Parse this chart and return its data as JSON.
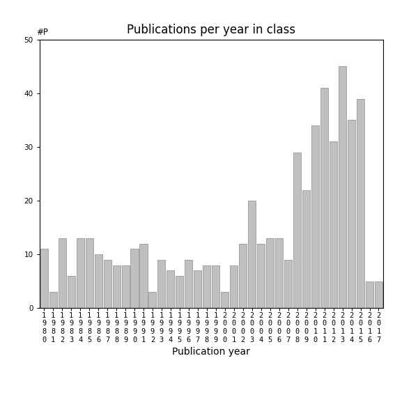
{
  "title": "Publications per year in class",
  "xlabel": "Publication year",
  "ylabel": "#P",
  "years": [
    "1980",
    "1981",
    "1982",
    "1983",
    "1984",
    "1985",
    "1986",
    "1987",
    "1988",
    "1989",
    "1990",
    "1991",
    "1992",
    "1993",
    "1994",
    "1995",
    "1996",
    "1997",
    "1998",
    "1999",
    "2000",
    "2001",
    "2002",
    "2003",
    "2004",
    "2005",
    "2006",
    "2007",
    "2008",
    "2009",
    "2010",
    "2011",
    "2012",
    "2013",
    "2014",
    "2015",
    "2016",
    "2017"
  ],
  "values": [
    11,
    3,
    13,
    6,
    13,
    13,
    10,
    9,
    8,
    8,
    11,
    12,
    3,
    9,
    7,
    6,
    9,
    7,
    8,
    8,
    3,
    8,
    12,
    20,
    12,
    13,
    13,
    9,
    29,
    22,
    34,
    41,
    31,
    45,
    35,
    39,
    5,
    5
  ],
  "bar_color": "#c0c0c0",
  "bar_edge_color": "#888888",
  "ylim": [
    0,
    50
  ],
  "yticks": [
    0,
    10,
    20,
    30,
    40,
    50
  ],
  "background_color": "#ffffff",
  "title_fontsize": 12,
  "label_fontsize": 10,
  "tick_fontsize": 7.5
}
